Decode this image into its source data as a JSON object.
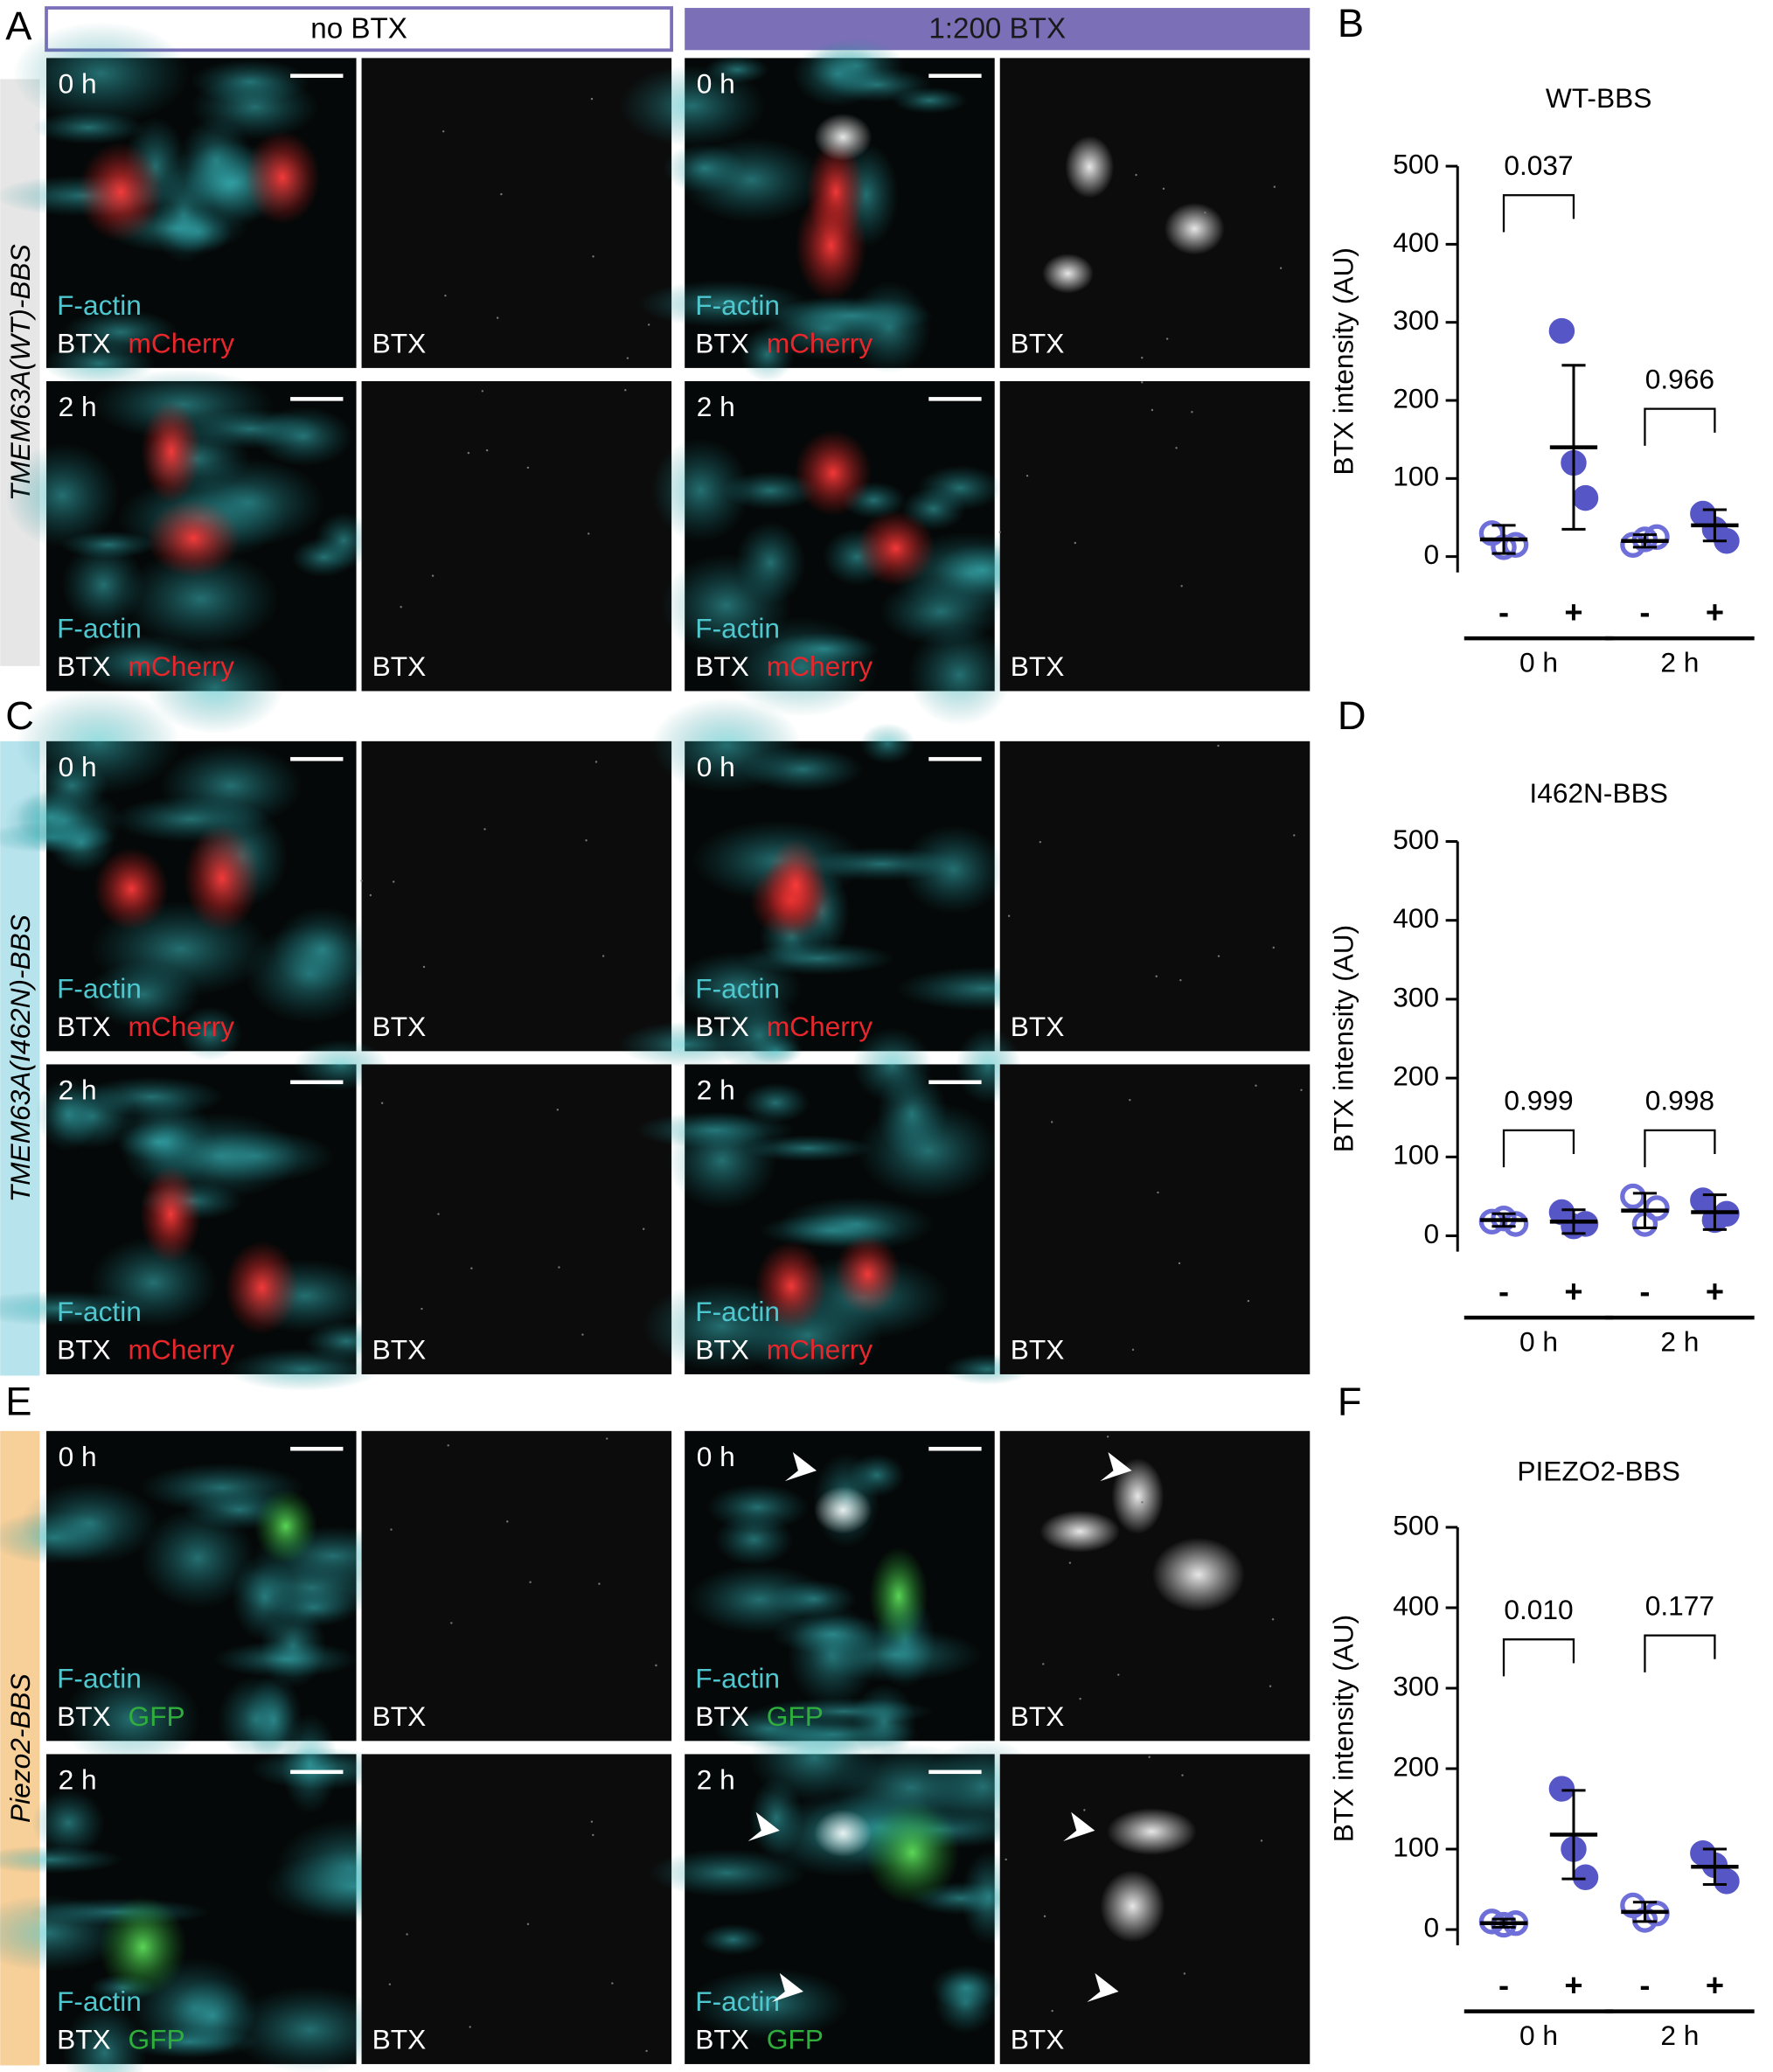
{
  "panel_letters": [
    "A",
    "B",
    "C",
    "D",
    "E",
    "F"
  ],
  "column_headers": [
    "no BTX",
    "1:200 BTX"
  ],
  "channels": {
    "actin": "F-actin",
    "btx": "BTX"
  },
  "image_groups": [
    {
      "construct": "TMEM63A(WT)-BBS",
      "reporter": "mCherry",
      "reporter_color": "#e8262b",
      "band_color": "#e6e6e6",
      "times": [
        "0 h",
        "2 h"
      ]
    },
    {
      "construct": "TMEM63A(I462N)-BBS",
      "reporter": "mCherry",
      "reporter_color": "#e8262b",
      "band_color": "#b6e3ec",
      "times": [
        "0 h",
        "2 h"
      ]
    },
    {
      "construct": "Piezo2-BBS",
      "reporter": "GFP",
      "reporter_color": "#2fae3c",
      "band_color": "#f7cf99",
      "times": [
        "0 h",
        "2 h"
      ]
    }
  ],
  "chart_data": [
    {
      "type": "dotplot",
      "title": "WT-BBS",
      "y_label": "BTX intensity (AU)",
      "categories": [
        "-",
        "+",
        "-",
        "+"
      ],
      "groups": [
        "0 h",
        "2 h"
      ],
      "ylim": [
        0,
        500
      ],
      "yticks": [
        0,
        100,
        200,
        300,
        400,
        500
      ],
      "means": [
        22,
        140,
        20,
        40
      ],
      "errors": [
        18,
        105,
        8,
        20
      ],
      "replicates": [
        [
          30,
          12,
          15
        ],
        [
          289,
          120,
          75
        ],
        [
          15,
          22,
          25
        ],
        [
          55,
          35,
          20
        ]
      ],
      "open_color": "#6f6fd9",
      "filled_color": "#5656c6",
      "p_values": [
        "0.037",
        "0.966"
      ]
    },
    {
      "type": "dotplot",
      "title": "I462N-BBS",
      "y_label": "BTX intensity (AU)",
      "categories": [
        "-",
        "+",
        "-",
        "+"
      ],
      "groups": [
        "0 h",
        "2 h"
      ],
      "ylim": [
        0,
        500
      ],
      "yticks": [
        0,
        100,
        200,
        300,
        400,
        500
      ],
      "means": [
        20,
        18,
        32,
        30
      ],
      "errors": [
        8,
        15,
        22,
        22
      ],
      "replicates": [
        [
          18,
          22,
          15
        ],
        [
          30,
          12,
          15
        ],
        [
          50,
          15,
          35
        ],
        [
          45,
          20,
          28
        ]
      ],
      "open_color": "#6f6fd9",
      "filled_color": "#5656c6",
      "p_values": [
        "0.999",
        "0.998"
      ]
    },
    {
      "type": "dotplot",
      "title": "PIEZO2-BBS",
      "y_label": "BTX intensity (AU)",
      "categories": [
        "-",
        "+",
        "-",
        "+"
      ],
      "groups": [
        "0 h",
        "2 h"
      ],
      "ylim": [
        0,
        500
      ],
      "yticks": [
        0,
        100,
        200,
        300,
        400,
        500
      ],
      "means": [
        8,
        118,
        22,
        78
      ],
      "errors": [
        5,
        55,
        12,
        22
      ],
      "replicates": [
        [
          10,
          6,
          8
        ],
        [
          175,
          100,
          65
        ],
        [
          30,
          12,
          20
        ],
        [
          95,
          80,
          60
        ]
      ],
      "open_color": "#6f6fd9",
      "filled_color": "#5656c6",
      "p_values": [
        "0.010",
        "0.177"
      ]
    }
  ]
}
